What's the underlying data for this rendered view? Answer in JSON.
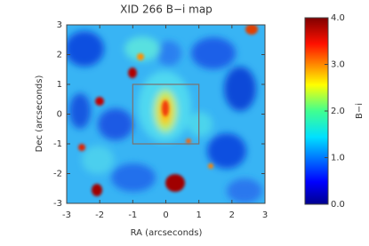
{
  "chart_data": {
    "type": "heatmap",
    "title": "XID 266 B−i map",
    "xlabel": "RA (arcseconds)",
    "ylabel": "Dec (arcseconds)",
    "xlim": [
      -3,
      3
    ],
    "ylim": [
      -3,
      3
    ],
    "xticks": [
      -3,
      -2,
      -1,
      0,
      1,
      2,
      3
    ],
    "yticks": [
      -3,
      -2,
      -1,
      0,
      1,
      2,
      3
    ],
    "box_x": [
      -1,
      1
    ],
    "box_y": [
      -1,
      1
    ],
    "colorbar": {
      "label": "B−i",
      "clim": [
        0,
        4
      ],
      "ticks": [
        {
          "value": 0,
          "label": "0.0"
        },
        {
          "value": 1,
          "label": "1.0"
        },
        {
          "value": 2,
          "label": "2.0"
        },
        {
          "value": 3,
          "label": "3.0"
        },
        {
          "value": 4,
          "label": "4.0"
        }
      ]
    }
  }
}
